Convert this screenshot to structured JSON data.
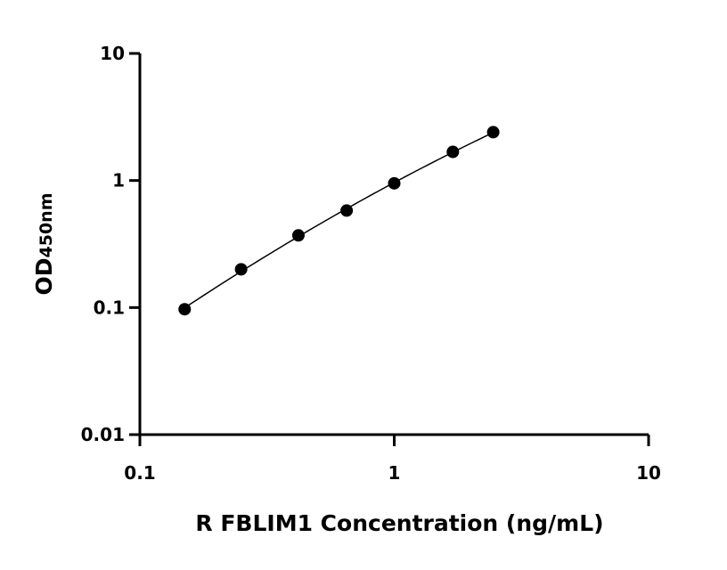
{
  "chart_data": {
    "type": "scatter",
    "xlabel": "R FBLIM1 Concentration (ng/mL)",
    "ylabel_main": "OD",
    "ylabel_sub": "450nm",
    "x_scale": "log",
    "y_scale": "log",
    "xlim": [
      0.1,
      10
    ],
    "ylim": [
      0.01,
      10
    ],
    "x_ticks": [
      "0.1",
      "1",
      "10"
    ],
    "y_ticks": [
      "0.01",
      "0.1",
      "1",
      "10"
    ],
    "grid": false,
    "series": [
      {
        "x": [
          0.15,
          0.25,
          0.42,
          0.65,
          1.0,
          1.7,
          2.45
        ],
        "y": [
          0.097,
          0.2,
          0.37,
          0.58,
          0.95,
          1.68,
          2.4
        ],
        "color": "#000000",
        "fit_line": true
      }
    ]
  }
}
